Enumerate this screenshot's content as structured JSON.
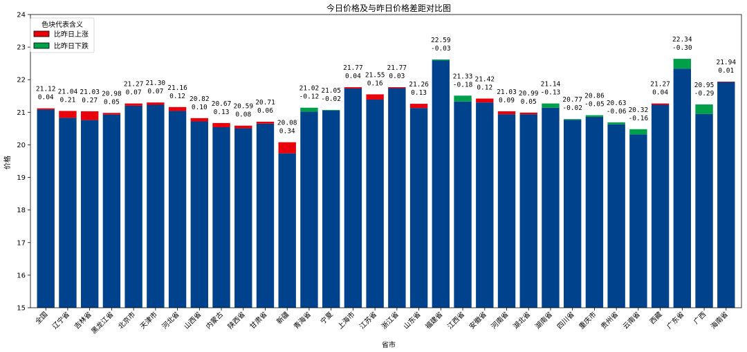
{
  "chart_data": {
    "type": "bar",
    "title": "今日价格及与昨日价格差距对比图",
    "xlabel": "省市",
    "ylabel": "价格",
    "ylim": [
      15,
      24
    ],
    "yticks": [
      15,
      16,
      17,
      18,
      19,
      20,
      21,
      22,
      23,
      24
    ],
    "legend": {
      "title": "色块代表含义",
      "placement": "top-left",
      "items": [
        {
          "label": "比昨日上涨",
          "color": "#e8000b"
        },
        {
          "label": "比昨日下跌",
          "color": "#00a04a"
        }
      ]
    },
    "colors": {
      "base": "#00438c",
      "up": "#e8000b",
      "down": "#00a04a"
    },
    "categories": [
      "全国",
      "辽宁省",
      "吉林省",
      "黑龙江省",
      "北京市",
      "天津市",
      "河北省",
      "山西省",
      "内蒙古",
      "陕西省",
      "甘肃省",
      "新疆",
      "青海省",
      "宁夏",
      "上海市",
      "江苏省",
      "浙江省",
      "山东省",
      "福建省",
      "江西省",
      "安徽省",
      "河南省",
      "湖北省",
      "湖南省",
      "四川省",
      "重庆市",
      "贵州省",
      "云南省",
      "西藏",
      "广东省",
      "广西",
      "海南省"
    ],
    "values": [
      21.12,
      21.04,
      21.03,
      20.98,
      21.27,
      21.3,
      21.16,
      20.82,
      20.67,
      20.59,
      20.71,
      20.08,
      21.02,
      21.05,
      21.77,
      21.55,
      21.77,
      21.26,
      22.59,
      21.33,
      21.42,
      21.03,
      20.99,
      21.14,
      20.77,
      20.86,
      20.63,
      20.32,
      21.27,
      22.34,
      20.95,
      21.94
    ],
    "value_labels": [
      "21.12",
      "21.04",
      "21.03",
      "20.98",
      "21.27",
      "21.30",
      "21.16",
      "20.82",
      "20.67",
      "20.59",
      "20.71",
      "20.08",
      "21.02",
      "21.05",
      "21.77",
      "21.55",
      "21.77",
      "21.26",
      "22.59",
      "21.33",
      "21.42",
      "21.03",
      "20.99",
      "21.14",
      "20.77",
      "20.86",
      "20.63",
      "20.32",
      "21.27",
      "22.34",
      "20.95",
      "21.94"
    ],
    "changes": [
      0.04,
      0.21,
      0.27,
      0.05,
      0.07,
      0.07,
      0.12,
      0.1,
      0.13,
      0.08,
      0.06,
      0.34,
      -0.12,
      -0.02,
      0.04,
      0.16,
      0.03,
      0.13,
      -0.03,
      -0.18,
      0.12,
      0.09,
      0.05,
      -0.13,
      -0.02,
      -0.05,
      -0.06,
      -0.16,
      0.04,
      -0.3,
      -0.29,
      0.01
    ],
    "change_labels": [
      "0.04",
      "0.21",
      "0.27",
      "0.05",
      "0.07",
      "0.07",
      "0.12",
      "0.10",
      "0.13",
      "0.08",
      "0.06",
      "0.34",
      "-0.12",
      "-0.02",
      "0.04",
      "0.16",
      "0.03",
      "0.13",
      "-0.03",
      "-0.18",
      "0.12",
      "0.09",
      "0.05",
      "-0.13",
      "-0.02",
      "-0.05",
      "-0.06",
      "-0.16",
      "0.04",
      "-0.30",
      "-0.29",
      "0.01"
    ]
  }
}
